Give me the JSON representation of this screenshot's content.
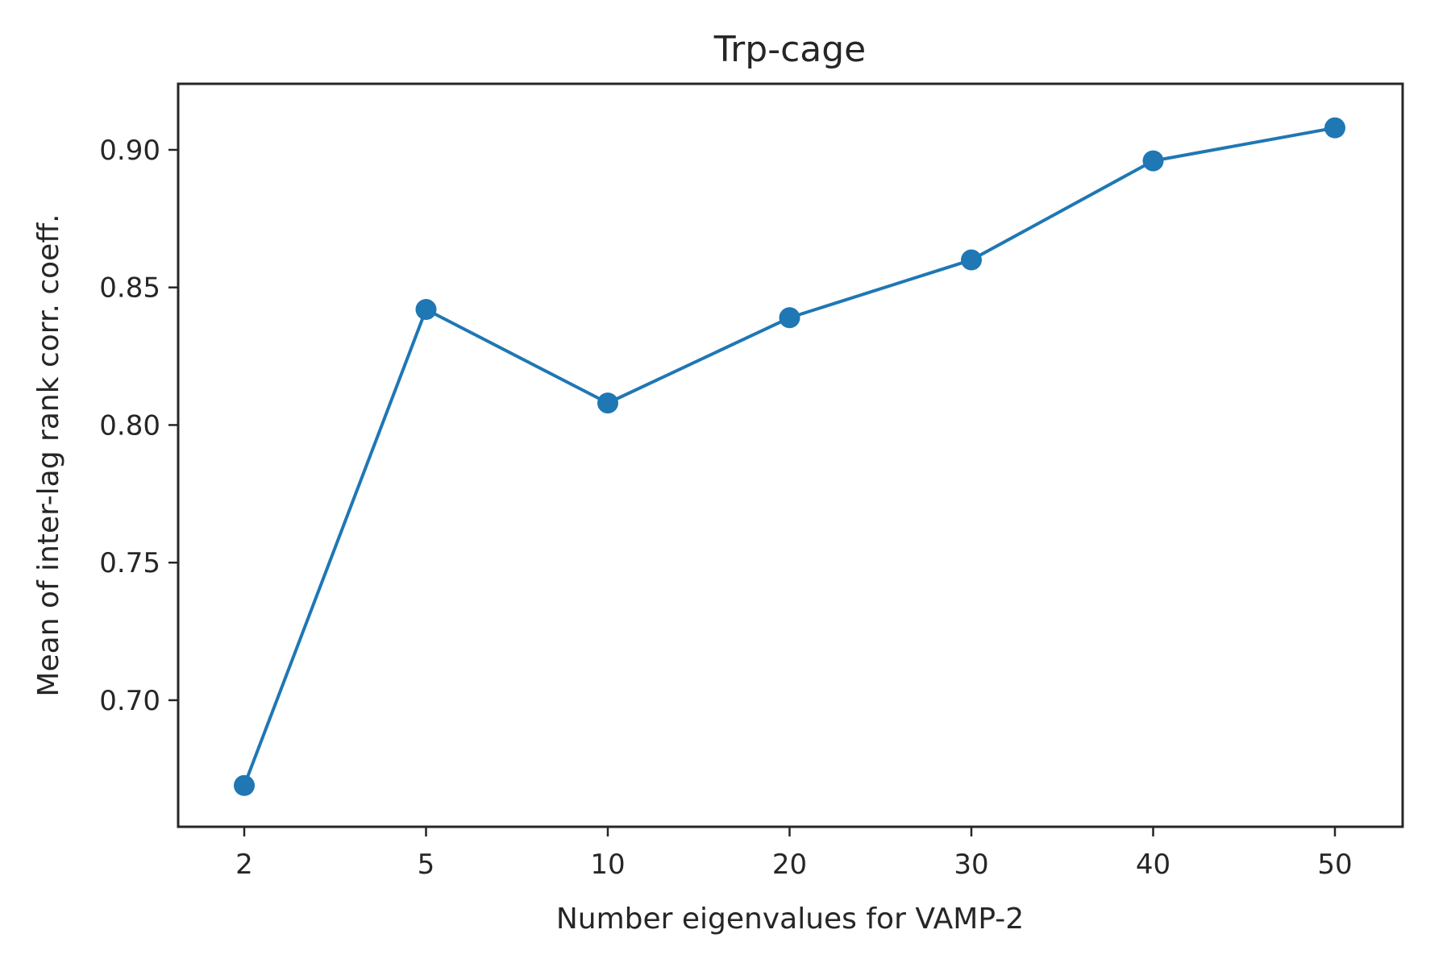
{
  "chart_data": {
    "type": "line",
    "title": "Trp-cage",
    "xlabel": "Number eigenvalues for VAMP-2",
    "ylabel": "Mean of inter-lag rank corr. coeff.",
    "categories": [
      "2",
      "5",
      "10",
      "20",
      "30",
      "40",
      "50"
    ],
    "series": [
      {
        "values": [
          0.669,
          0.842,
          0.808,
          0.839,
          0.86,
          0.896,
          0.908
        ],
        "color": "#1f77b4"
      }
    ],
    "yticks": [
      0.7,
      0.75,
      0.8,
      0.85,
      0.9
    ],
    "ytick_labels": [
      "0.70",
      "0.75",
      "0.80",
      "0.85",
      "0.90"
    ],
    "ylim": [
      0.654,
      0.924
    ],
    "grid": false,
    "legend": "none"
  }
}
